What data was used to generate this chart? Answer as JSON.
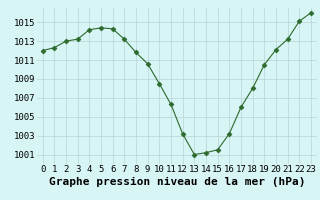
{
  "x": [
    0,
    1,
    2,
    3,
    4,
    5,
    6,
    7,
    8,
    9,
    10,
    11,
    12,
    13,
    14,
    15,
    16,
    17,
    18,
    19,
    20,
    21,
    22,
    23
  ],
  "y": [
    1012.0,
    1012.3,
    1013.0,
    1013.2,
    1014.2,
    1014.4,
    1014.3,
    1013.2,
    1011.8,
    1010.6,
    1008.5,
    1006.3,
    1003.2,
    1001.0,
    1001.2,
    1001.5,
    1003.2,
    1006.0,
    1008.0,
    1010.5,
    1012.1,
    1013.2,
    1015.1,
    1016.0
  ],
  "line_color": "#2d6a2d",
  "marker": "D",
  "marker_size": 2.5,
  "bg_color": "#d8f5f5",
  "grid_color": "#b8d4d4",
  "xlabel": "Graphe pression niveau de la mer (hPa)",
  "ylim": [
    1000.0,
    1016.5
  ],
  "yticks": [
    1001,
    1003,
    1005,
    1007,
    1009,
    1011,
    1013,
    1015
  ],
  "xticks": [
    0,
    1,
    2,
    3,
    4,
    5,
    6,
    7,
    8,
    9,
    10,
    11,
    12,
    13,
    14,
    15,
    16,
    17,
    18,
    19,
    20,
    21,
    22,
    23
  ],
  "xlabel_fontsize": 8,
  "tick_fontsize": 6.5
}
